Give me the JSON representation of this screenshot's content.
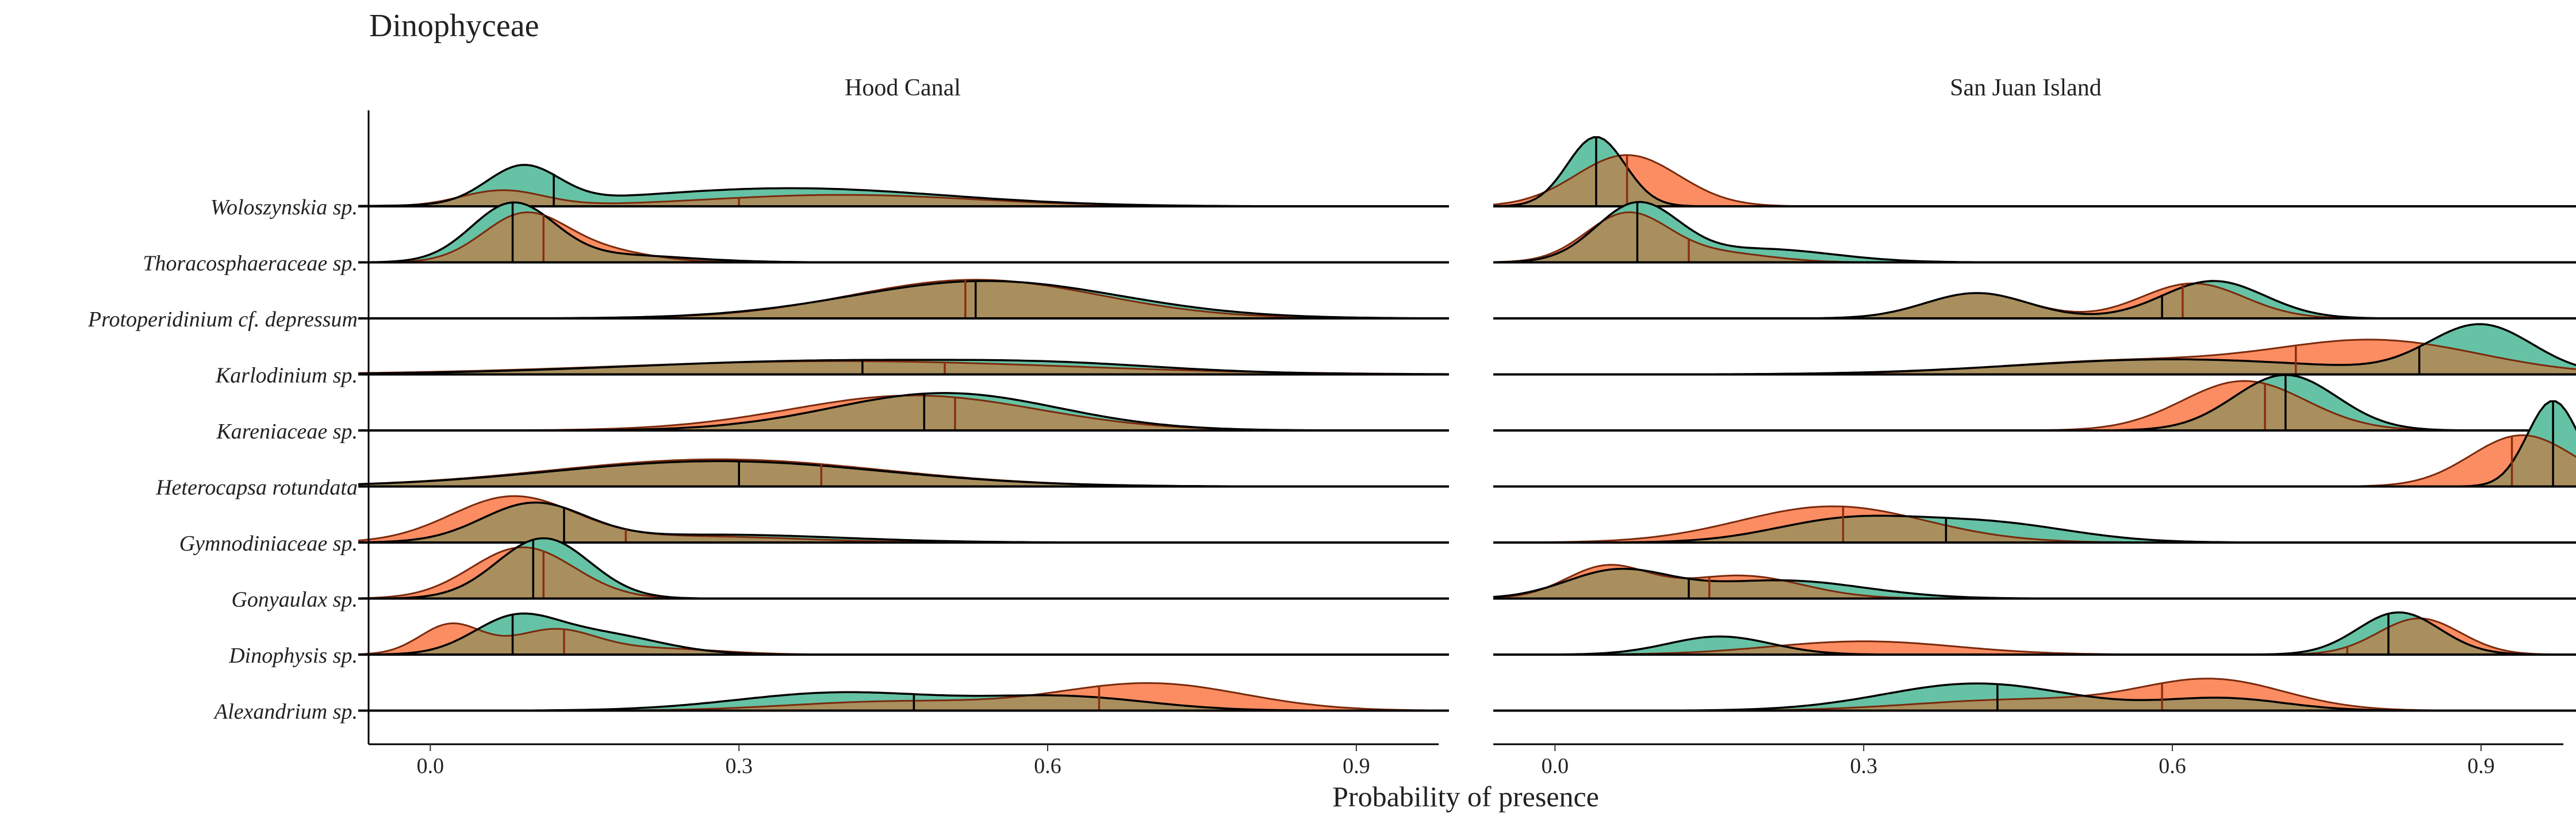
{
  "chart_data": {
    "type": "ridgeline",
    "title": "Dinophyceae",
    "xlabel": "Probability of presence",
    "xlim": [
      -0.06,
      0.98
    ],
    "x_ticks": [
      0.0,
      0.3,
      0.6,
      0.9
    ],
    "x_tick_labels": [
      "0.0",
      "0.3",
      "0.6",
      "0.9"
    ],
    "categories": [
      "Woloszynskia sp.",
      "Thoracosphaeraceae sp.",
      "Protoperidinium cf. depressum",
      "Karlodinium sp.",
      "Kareniaceae sp.",
      "Heterocapsa rotundata",
      "Gymnodiniaceae sp.",
      "Gonyaulax sp.",
      "Dinophysis sp.",
      "Alexandrium sp."
    ],
    "colors": {
      "green": "#66c2a5",
      "orange": "#fc8d62",
      "overlap": "#a98f5e"
    },
    "legend": "none",
    "grid": false,
    "panels": [
      {
        "name": "Hood Canal",
        "xrange": [
          -0.07,
          0.99
        ],
        "ridges": [
          {
            "category": "Woloszynskia sp.",
            "green": {
              "median": 0.12,
              "components": [
                [
                  0.09,
                  0.035,
                  0.62
                ],
                [
                  0.35,
                  0.15,
                  0.3
                ]
              ]
            },
            "orange": {
              "median": 0.3,
              "components": [
                [
                  0.07,
                  0.04,
                  0.26
                ],
                [
                  0.4,
                  0.13,
                  0.19
                ]
              ]
            }
          },
          {
            "category": "Thoracosphaeraceae sp.",
            "green": {
              "median": 0.08,
              "components": [
                [
                  0.08,
                  0.04,
                  0.95
                ],
                [
                  0.18,
                  0.07,
                  0.12
                ]
              ]
            },
            "orange": {
              "median": 0.11,
              "components": [
                [
                  0.09,
                  0.04,
                  0.75
                ],
                [
                  0.16,
                  0.05,
                  0.2
                ]
              ]
            }
          },
          {
            "category": "Protoperidinium cf. depressum",
            "green": {
              "median": 0.53,
              "components": [
                [
                  0.54,
                  0.13,
                  0.62
                ]
              ]
            },
            "orange": {
              "median": 0.52,
              "components": [
                [
                  0.53,
                  0.12,
                  0.64
                ]
              ]
            }
          },
          {
            "category": "Karlodinium sp.",
            "green": {
              "median": 0.42,
              "components": [
                [
                  0.4,
                  0.2,
                  0.23
                ],
                [
                  0.62,
                  0.1,
                  0.08
                ]
              ]
            },
            "orange": {
              "median": 0.5,
              "components": [
                [
                  0.4,
                  0.22,
                  0.22
                ]
              ]
            }
          },
          {
            "category": "Kareniaceae sp.",
            "green": {
              "median": 0.48,
              "components": [
                [
                  0.5,
                  0.11,
                  0.62
                ]
              ]
            },
            "orange": {
              "median": 0.51,
              "components": [
                [
                  0.47,
                  0.12,
                  0.58
                ]
              ]
            }
          },
          {
            "category": "Heterocapsa rotundata",
            "green": {
              "median": 0.3,
              "components": [
                [
                  0.28,
                  0.16,
                  0.42
                ]
              ]
            },
            "orange": {
              "median": 0.38,
              "components": [
                [
                  0.28,
                  0.16,
                  0.45
                ]
              ]
            }
          },
          {
            "category": "Gymnodiniaceae sp.",
            "green": {
              "median": 0.13,
              "components": [
                [
                  0.1,
                  0.05,
                  0.62
                ],
                [
                  0.28,
                  0.12,
                  0.13
                ]
              ]
            },
            "orange": {
              "median": 0.19,
              "components": [
                [
                  0.08,
                  0.06,
                  0.75
                ],
                [
                  0.26,
                  0.1,
                  0.1
                ]
              ]
            }
          },
          {
            "category": "Gonyaulax sp.",
            "green": {
              "median": 0.1,
              "components": [
                [
                  0.11,
                  0.045,
                  1.0
                ]
              ]
            },
            "orange": {
              "median": 0.11,
              "components": [
                [
                  0.09,
                  0.05,
                  0.85
                ]
              ]
            }
          },
          {
            "category": "Dinophysis sp.",
            "green": {
              "median": 0.08,
              "components": [
                [
                  0.08,
                  0.04,
                  0.52
                ],
                [
                  0.16,
                  0.06,
                  0.35
                ]
              ]
            },
            "orange": {
              "median": 0.13,
              "components": [
                [
                  0.02,
                  0.03,
                  0.5
                ],
                [
                  0.12,
                  0.04,
                  0.4
                ],
                [
                  0.22,
                  0.06,
                  0.1
                ]
              ]
            }
          },
          {
            "category": "Alexandrium sp.",
            "green": {
              "median": 0.47,
              "components": [
                [
                  0.4,
                  0.1,
                  0.3
                ],
                [
                  0.62,
                  0.08,
                  0.22
                ]
              ]
            },
            "orange": {
              "median": 0.65,
              "components": [
                [
                  0.7,
                  0.09,
                  0.45
                ],
                [
                  0.45,
                  0.1,
                  0.15
                ]
              ]
            }
          }
        ]
      },
      {
        "name": "San Juan Island",
        "xrange": [
          -0.06,
          1.07
        ],
        "ridges": [
          {
            "category": "Woloszynskia sp.",
            "green": {
              "median": 0.04,
              "components": [
                [
                  0.04,
                  0.028,
                  1.15
                ]
              ]
            },
            "orange": {
              "median": 0.07,
              "components": [
                [
                  0.07,
                  0.05,
                  0.85
                ]
              ]
            }
          },
          {
            "category": "Thoracosphaeraceae sp.",
            "green": {
              "median": 0.08,
              "components": [
                [
                  0.08,
                  0.04,
                  0.95
                ],
                [
                  0.2,
                  0.07,
                  0.22
                ]
              ]
            },
            "orange": {
              "median": 0.13,
              "components": [
                [
                  0.07,
                  0.04,
                  0.8
                ],
                [
                  0.16,
                  0.05,
                  0.15
                ]
              ]
            }
          },
          {
            "category": "Protoperidinium cf. depressum",
            "green": {
              "median": 0.59,
              "components": [
                [
                  0.41,
                  0.05,
                  0.42
                ],
                [
                  0.64,
                  0.05,
                  0.62
                ]
              ]
            },
            "orange": {
              "median": 0.61,
              "components": [
                [
                  0.41,
                  0.05,
                  0.42
                ],
                [
                  0.62,
                  0.05,
                  0.58
                ]
              ]
            }
          },
          {
            "category": "Karlodinium sp.",
            "green": {
              "median": 0.84,
              "components": [
                [
                  0.9,
                  0.05,
                  0.8
                ],
                [
                  0.6,
                  0.15,
                  0.25
                ]
              ]
            },
            "orange": {
              "median": 0.72,
              "components": [
                [
                  0.8,
                  0.1,
                  0.55
                ],
                [
                  0.55,
                  0.12,
                  0.22
                ]
              ]
            }
          },
          {
            "category": "Kareniaceae sp.",
            "green": {
              "median": 0.71,
              "components": [
                [
                  0.71,
                  0.05,
                  0.92
                ]
              ]
            },
            "orange": {
              "median": 0.69,
              "components": [
                [
                  0.67,
                  0.06,
                  0.82
                ]
              ]
            }
          },
          {
            "category": "Heterocapsa rotundata",
            "green": {
              "median": 0.97,
              "components": [
                [
                  0.97,
                  0.025,
                  1.42
                ]
              ]
            },
            "orange": {
              "median": 0.93,
              "components": [
                [
                  0.94,
                  0.05,
                  0.85
                ]
              ]
            }
          },
          {
            "category": "Gymnodiniaceae sp.",
            "green": {
              "median": 0.38,
              "components": [
                [
                  0.28,
                  0.07,
                  0.35
                ],
                [
                  0.42,
                  0.08,
                  0.32
                ]
              ]
            },
            "orange": {
              "median": 0.28,
              "components": [
                [
                  0.27,
                  0.09,
                  0.6
                ]
              ]
            }
          },
          {
            "category": "Gonyaulax sp.",
            "green": {
              "median": 0.13,
              "components": [
                [
                  0.06,
                  0.05,
                  0.45
                ],
                [
                  0.22,
                  0.08,
                  0.3
                ]
              ]
            },
            "orange": {
              "median": 0.15,
              "components": [
                [
                  0.05,
                  0.04,
                  0.52
                ],
                [
                  0.18,
                  0.06,
                  0.38
                ]
              ]
            }
          },
          {
            "category": "Dinophysis sp.",
            "green": {
              "median": 0.81,
              "components": [
                [
                  0.16,
                  0.05,
                  0.3
                ],
                [
                  0.82,
                  0.04,
                  0.7
                ]
              ]
            },
            "orange": {
              "median": 0.77,
              "components": [
                [
                  0.3,
                  0.09,
                  0.22
                ],
                [
                  0.84,
                  0.04,
                  0.6
                ]
              ]
            }
          },
          {
            "category": "Alexandrium sp.",
            "green": {
              "median": 0.43,
              "components": [
                [
                  0.41,
                  0.09,
                  0.45
                ],
                [
                  0.65,
                  0.06,
                  0.2
                ]
              ]
            },
            "orange": {
              "median": 0.59,
              "components": [
                [
                  0.64,
                  0.07,
                  0.5
                ],
                [
                  0.45,
                  0.1,
                  0.18
                ]
              ]
            }
          }
        ]
      }
    ]
  }
}
